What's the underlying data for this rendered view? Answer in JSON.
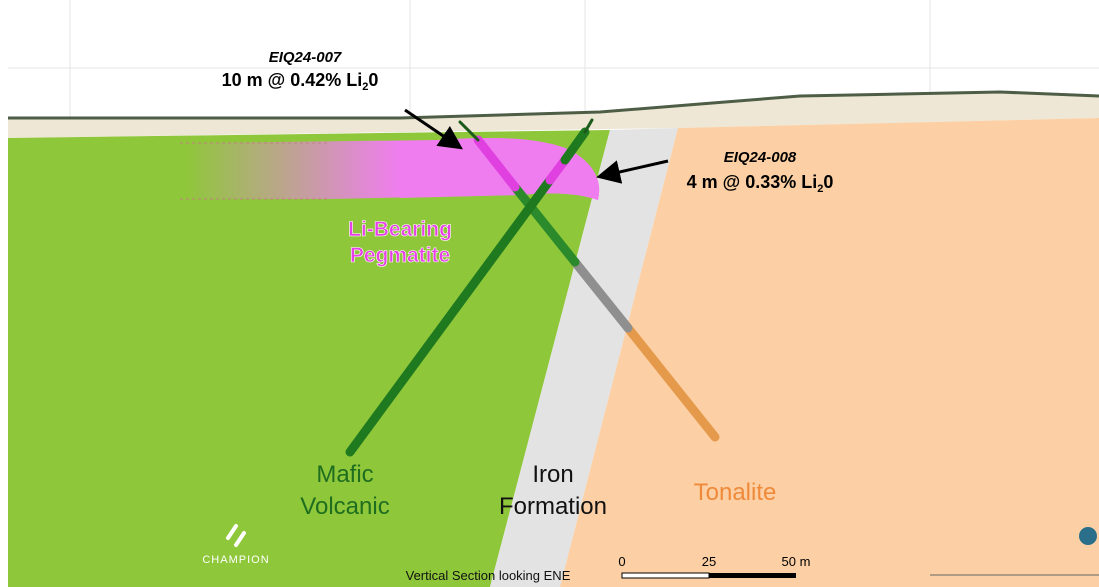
{
  "callouts": [
    {
      "hole": "EIQ24-007",
      "result": "10 m @ 0.42% Li",
      "subscript": "2",
      "suffix": "0"
    },
    {
      "hole": "EIQ24-008",
      "result": "4 m @ 0.33% Li",
      "subscript": "2",
      "suffix": "0"
    }
  ],
  "units": {
    "pegmatite": [
      "Li-Bearing",
      "Pegmatite"
    ],
    "mafic": [
      "Mafic",
      "Volcanic"
    ],
    "iron": [
      "Iron",
      "Formation"
    ],
    "tonalite": "Tonalite"
  },
  "footer": "Vertical Section looking ENE",
  "scale_bar": [
    "0",
    "25",
    "50 m"
  ],
  "logo": "CHAMPION"
}
